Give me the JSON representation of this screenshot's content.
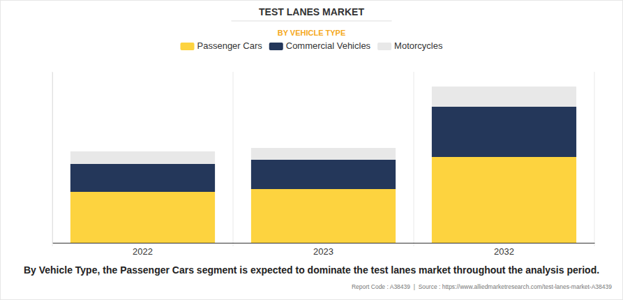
{
  "chart_data": {
    "type": "bar",
    "title": "TEST LANES MARKET",
    "subtitle": "BY VEHICLE TYPE",
    "categories": [
      "2022",
      "2023",
      "2032"
    ],
    "series": [
      {
        "name": "Passenger Cars",
        "color": "#fdd33f",
        "values": [
          73,
          77,
          123
        ]
      },
      {
        "name": "Commercial Vehicles",
        "color": "#24375a",
        "values": [
          40,
          42,
          72
        ]
      },
      {
        "name": "Motorcycles",
        "color": "#e8e8e8",
        "values": [
          18,
          17,
          29
        ]
      }
    ],
    "stacked": true,
    "legend": "top",
    "tick_labels": "x",
    "ylim": [
      0,
      245
    ],
    "yticks": [],
    "caption": "By Vehicle Type, the Passenger Cars segment is expected to dominate the test lanes market throughout the analysis period.",
    "source": "Report Code : A38439  |  Source : https://www.alliedmarketresearch.com/test-lanes-market-A38439"
  }
}
